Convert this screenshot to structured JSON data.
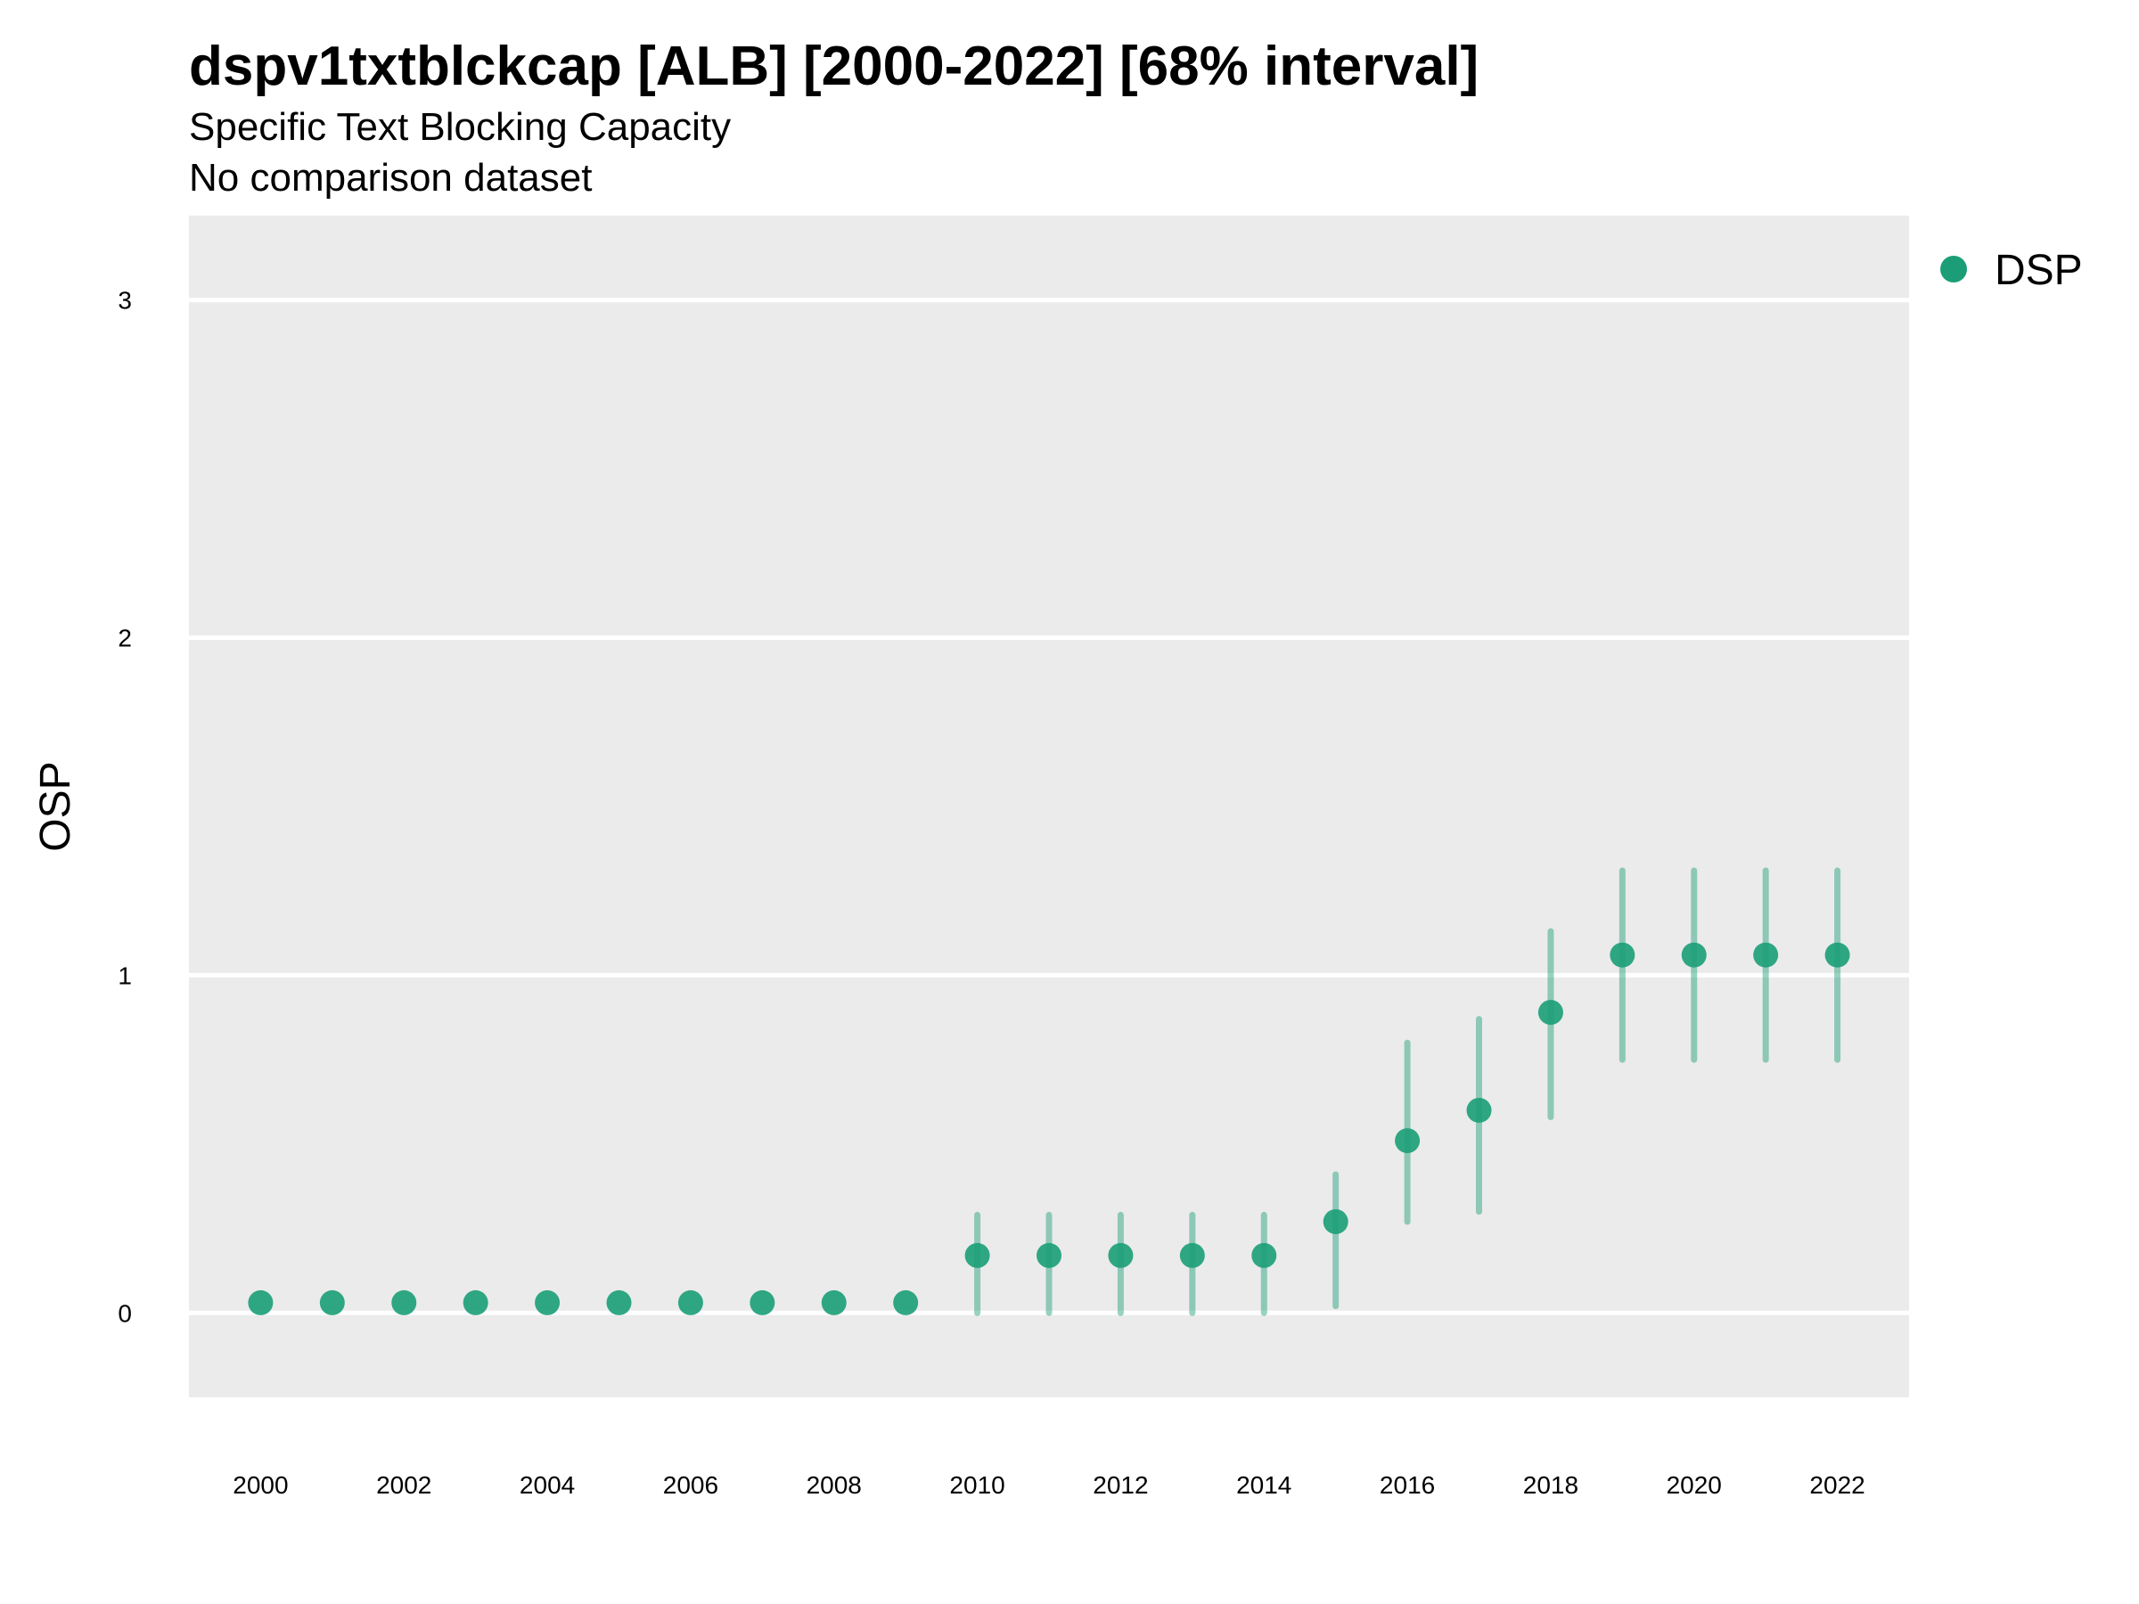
{
  "chart_data": {
    "type": "scatter",
    "title": "dspv1txtblckcap [ALB] [2000-2022] [68% interval]",
    "subtitle": "Specific Text Blocking Capacity",
    "caption": "No comparison dataset",
    "xlabel": "",
    "ylabel": "OSP",
    "xlim": [
      1999,
      2023
    ],
    "ylim": [
      -0.25,
      3.25
    ],
    "x_ticks": [
      2000,
      2002,
      2004,
      2006,
      2008,
      2010,
      2012,
      2014,
      2016,
      2018,
      2020,
      2022
    ],
    "y_ticks": [
      0,
      1,
      2,
      3
    ],
    "grid": true,
    "legend_position": "right",
    "series": [
      {
        "name": "DSP",
        "color": "#1b9e77",
        "x": [
          2000,
          2001,
          2002,
          2003,
          2004,
          2005,
          2006,
          2007,
          2008,
          2009,
          2010,
          2011,
          2012,
          2013,
          2014,
          2015,
          2016,
          2017,
          2018,
          2019,
          2020,
          2021,
          2022
        ],
        "y": [
          0.03,
          0.03,
          0.03,
          0.03,
          0.03,
          0.03,
          0.03,
          0.03,
          0.03,
          0.03,
          0.17,
          0.17,
          0.17,
          0.17,
          0.17,
          0.27,
          0.51,
          0.6,
          0.89,
          1.06,
          1.06,
          1.06,
          1.06
        ],
        "lower": [
          null,
          null,
          null,
          null,
          null,
          null,
          null,
          null,
          null,
          null,
          0.0,
          0.0,
          0.0,
          0.0,
          0.0,
          0.02,
          0.27,
          0.3,
          0.58,
          0.75,
          0.75,
          0.75,
          0.75
        ],
        "upper": [
          null,
          null,
          null,
          null,
          null,
          null,
          null,
          null,
          null,
          null,
          0.29,
          0.29,
          0.29,
          0.29,
          0.29,
          0.41,
          0.8,
          0.87,
          1.13,
          1.31,
          1.31,
          1.31,
          1.31
        ]
      }
    ]
  }
}
